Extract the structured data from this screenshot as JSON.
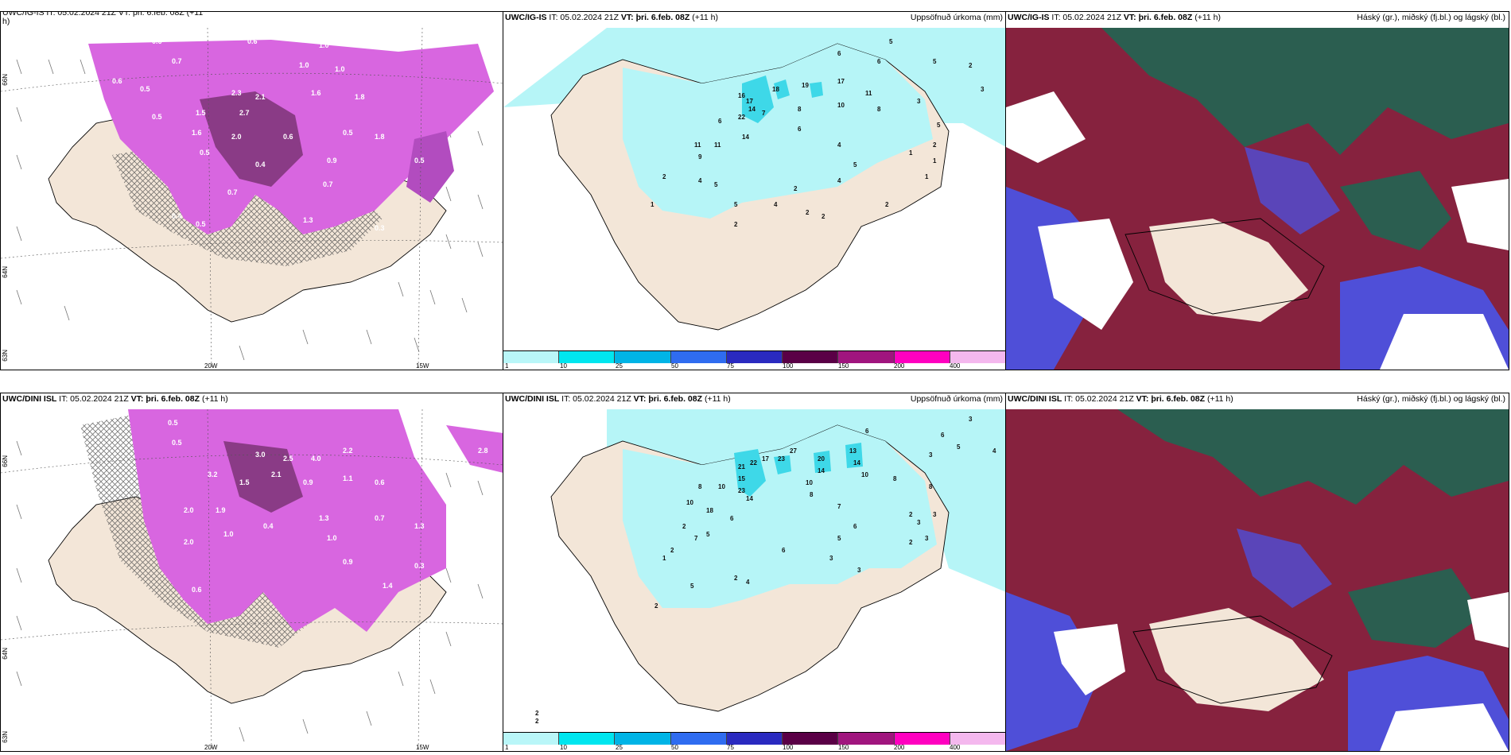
{
  "panels": {
    "top_left": {
      "header_fragment": "UWC/IG-IS IT: 05.02.2024 21Z VT: þri. 6.feb. 08Z (+11",
      "header_wrap": "h)",
      "lat_labels": [
        "66N",
        "64N",
        "63N"
      ],
      "lon_labels": [
        "20W",
        "15W"
      ]
    },
    "top_mid": {
      "model": "UWC/IG-IS",
      "it": "IT: 05.02.2024 21Z",
      "vt": "VT: þri. 6.feb. 08Z",
      "lead": "(+11 h)",
      "title": "Uppsöfnuð úrkoma (mm)",
      "values": [
        "5",
        "6",
        "5",
        "2",
        "3",
        "2",
        "3",
        "16",
        "17",
        "19",
        "18",
        "14",
        "22",
        "7",
        "14",
        "8",
        "6",
        "17",
        "10",
        "11",
        "8",
        "3",
        "11",
        "11",
        "9",
        "6",
        "6",
        "4",
        "3",
        "4",
        "5",
        "5",
        "1",
        "2",
        "2",
        "3",
        "2",
        "4",
        "4",
        "2",
        "2",
        "2",
        "2",
        "1",
        "1",
        "1",
        "2",
        "2",
        "5"
      ]
    },
    "top_right": {
      "model": "UWC/IG-IS",
      "it": "IT: 05.02.2024 21Z",
      "vt": "VT: þri. 6.feb. 08Z",
      "lead": "(+11 h)",
      "title": "Háský (gr.), miðský (fj.bl.) og lágský (bl.)"
    },
    "bottom_left": {
      "model": "UWC/DINI ISL",
      "it": "IT: 05.02.2024 21Z",
      "vt": "VT: þri. 6.feb. 08Z",
      "lead": "(+11 h)",
      "lat_labels": [
        "66N",
        "64N",
        "63N"
      ],
      "lon_labels": [
        "20W",
        "15W"
      ]
    },
    "bottom_mid": {
      "model": "UWC/DINI ISL",
      "it": "IT: 05.02.2024 21Z",
      "vt": "VT: þri. 6.feb. 08Z",
      "lead": "(+11 h)",
      "title": "Uppsöfnuð úrkoma (mm)"
    },
    "bottom_right": {
      "model": "UWC/DINI ISL",
      "it": "IT: 05.02.2024 21Z",
      "vt": "VT: þri. 6.feb. 08Z",
      "lead": "(+11 h)",
      "title": "Háský (gr.), miðský (fj.bl.) og lágský (bl.)"
    }
  },
  "colorbar": {
    "ticks": [
      "1",
      "10",
      "25",
      "50",
      "75",
      "100",
      "150",
      "200",
      "400"
    ],
    "colors": [
      "#b9f6f8",
      "#00e6ef",
      "#00b4e6",
      "#2f6cf0",
      "#2a2ac0",
      "#5a0046",
      "#a0157e",
      "#ff00c0",
      "#f4b8ee"
    ]
  },
  "colors": {
    "land": "#f3e6d8",
    "precip_light": "#b6f5f7",
    "precip_mid": "#3ed8e8",
    "snow_purple": "#d866e0",
    "snow_dark": "#6a2a60",
    "cloud_high": "#2b5e50",
    "cloud_mid": "#86223e",
    "cloud_low": "#4f4fd8"
  }
}
